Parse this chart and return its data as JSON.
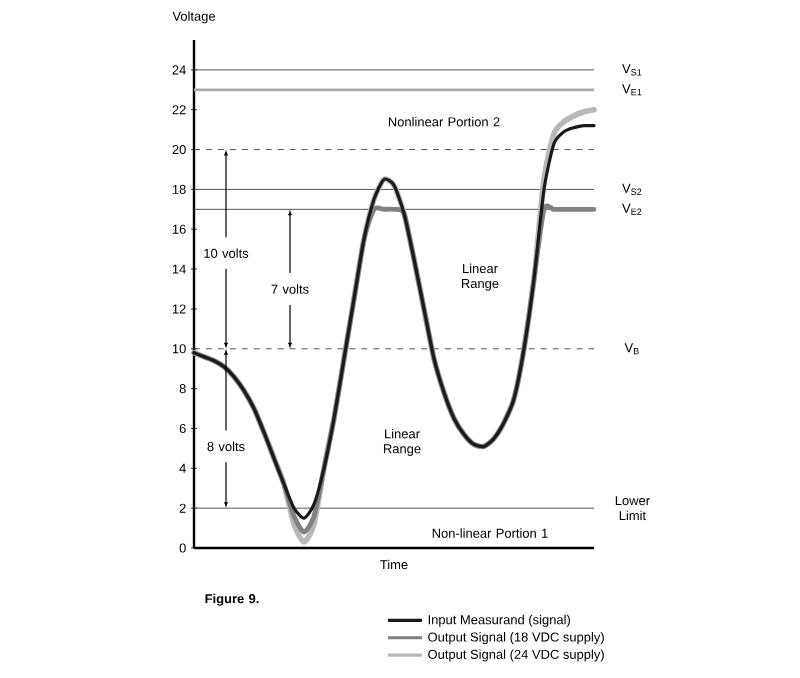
{
  "chart_data": {
    "type": "line",
    "xlabel": "Time",
    "ylabel": "Voltage",
    "categories": [
      null,
      null,
      null,
      null,
      null,
      null,
      null,
      null,
      null,
      null,
      null,
      null,
      null,
      null,
      null,
      null,
      null,
      null,
      null,
      null,
      null,
      null,
      null,
      null,
      null,
      null,
      null,
      null,
      null,
      null,
      null,
      null,
      null,
      null,
      null,
      null,
      null,
      null,
      null,
      null,
      null
    ],
    "series": [
      {
        "name": "Output Signal (24 VDC supply)",
        "color": "#b8b8b8",
        "values": [
          9.8,
          9.6,
          9.4,
          9.1,
          8.6,
          7.9,
          7.0,
          5.8,
          4.5,
          3.2,
          1.2,
          0.3,
          1.2,
          4.0,
          6.5,
          9.5,
          12.5,
          15.5,
          17.5,
          18.5,
          18.2,
          16.8,
          14.5,
          12.0,
          9.5,
          7.8,
          6.5,
          5.7,
          5.2,
          5.1,
          5.5,
          6.3,
          7.5,
          10,
          13.5,
          18.5,
          20.8,
          21.4,
          21.7,
          21.9,
          22
        ]
      },
      {
        "name": "Output Signal (18 VDC supply)",
        "color": "#808080",
        "values": [
          9.8,
          9.6,
          9.4,
          9.1,
          8.6,
          7.9,
          7.0,
          5.8,
          4.5,
          3.2,
          1.6,
          0.8,
          1.6,
          4.0,
          6.5,
          9.5,
          12.5,
          15.5,
          17,
          17,
          17,
          16.8,
          14.5,
          12.0,
          9.5,
          7.8,
          6.5,
          5.7,
          5.2,
          5.1,
          5.5,
          6.3,
          7.5,
          10,
          13.5,
          17,
          17,
          17,
          17,
          17,
          17
        ]
      },
      {
        "name": "Input Measurand (signal)",
        "color": "#1a1a1a",
        "values": [
          9.8,
          9.6,
          9.4,
          9.1,
          8.6,
          7.9,
          7.0,
          5.8,
          4.5,
          3.2,
          2.0,
          1.5,
          2.2,
          4.0,
          6.5,
          9.5,
          12.5,
          15.5,
          17.5,
          18.5,
          18.2,
          16.8,
          14.5,
          12.0,
          9.5,
          7.8,
          6.5,
          5.7,
          5.2,
          5.1,
          5.5,
          6.3,
          7.5,
          10,
          13.5,
          18,
          20.3,
          20.9,
          21.1,
          21.2,
          21.2
        ]
      }
    ],
    "ylim": [
      0,
      25.5
    ],
    "yticks": [
      0,
      2,
      4,
      6,
      8,
      10,
      12,
      14,
      16,
      18,
      20,
      22,
      24
    ],
    "tick_labels": "y",
    "grid": false,
    "legend": "bottom",
    "marker": "none",
    "line_style": "solid",
    "ref_lines": [
      {
        "axis": "y",
        "value": 24,
        "label": "V$_{S1}$",
        "color": "#555555"
      },
      {
        "axis": "y",
        "value": 23,
        "label": "V$_{E1}$",
        "color": "#aaaaaa"
      },
      {
        "axis": "y",
        "value": 20,
        "color": "#555555",
        "line_style": "dashed"
      },
      {
        "axis": "y",
        "value": 18,
        "label": "V$_{S2}$",
        "color": "#555555"
      },
      {
        "axis": "y",
        "value": 17,
        "label": "V$_{E2}$",
        "color": "#555555"
      },
      {
        "axis": "y",
        "value": 10,
        "label": "V$_{B}$",
        "color": "#555555",
        "line_style": "dashed"
      },
      {
        "axis": "y",
        "value": 2,
        "label": "Lower Limit",
        "color": "#555555"
      }
    ],
    "annotations": [
      "Nonlinear Portion 2",
      "Linear Range",
      "Linear Range",
      "Non-linear Portion 1",
      "10 volts",
      "7 volts",
      "8 volts",
      "Figure 9."
    ]
  }
}
